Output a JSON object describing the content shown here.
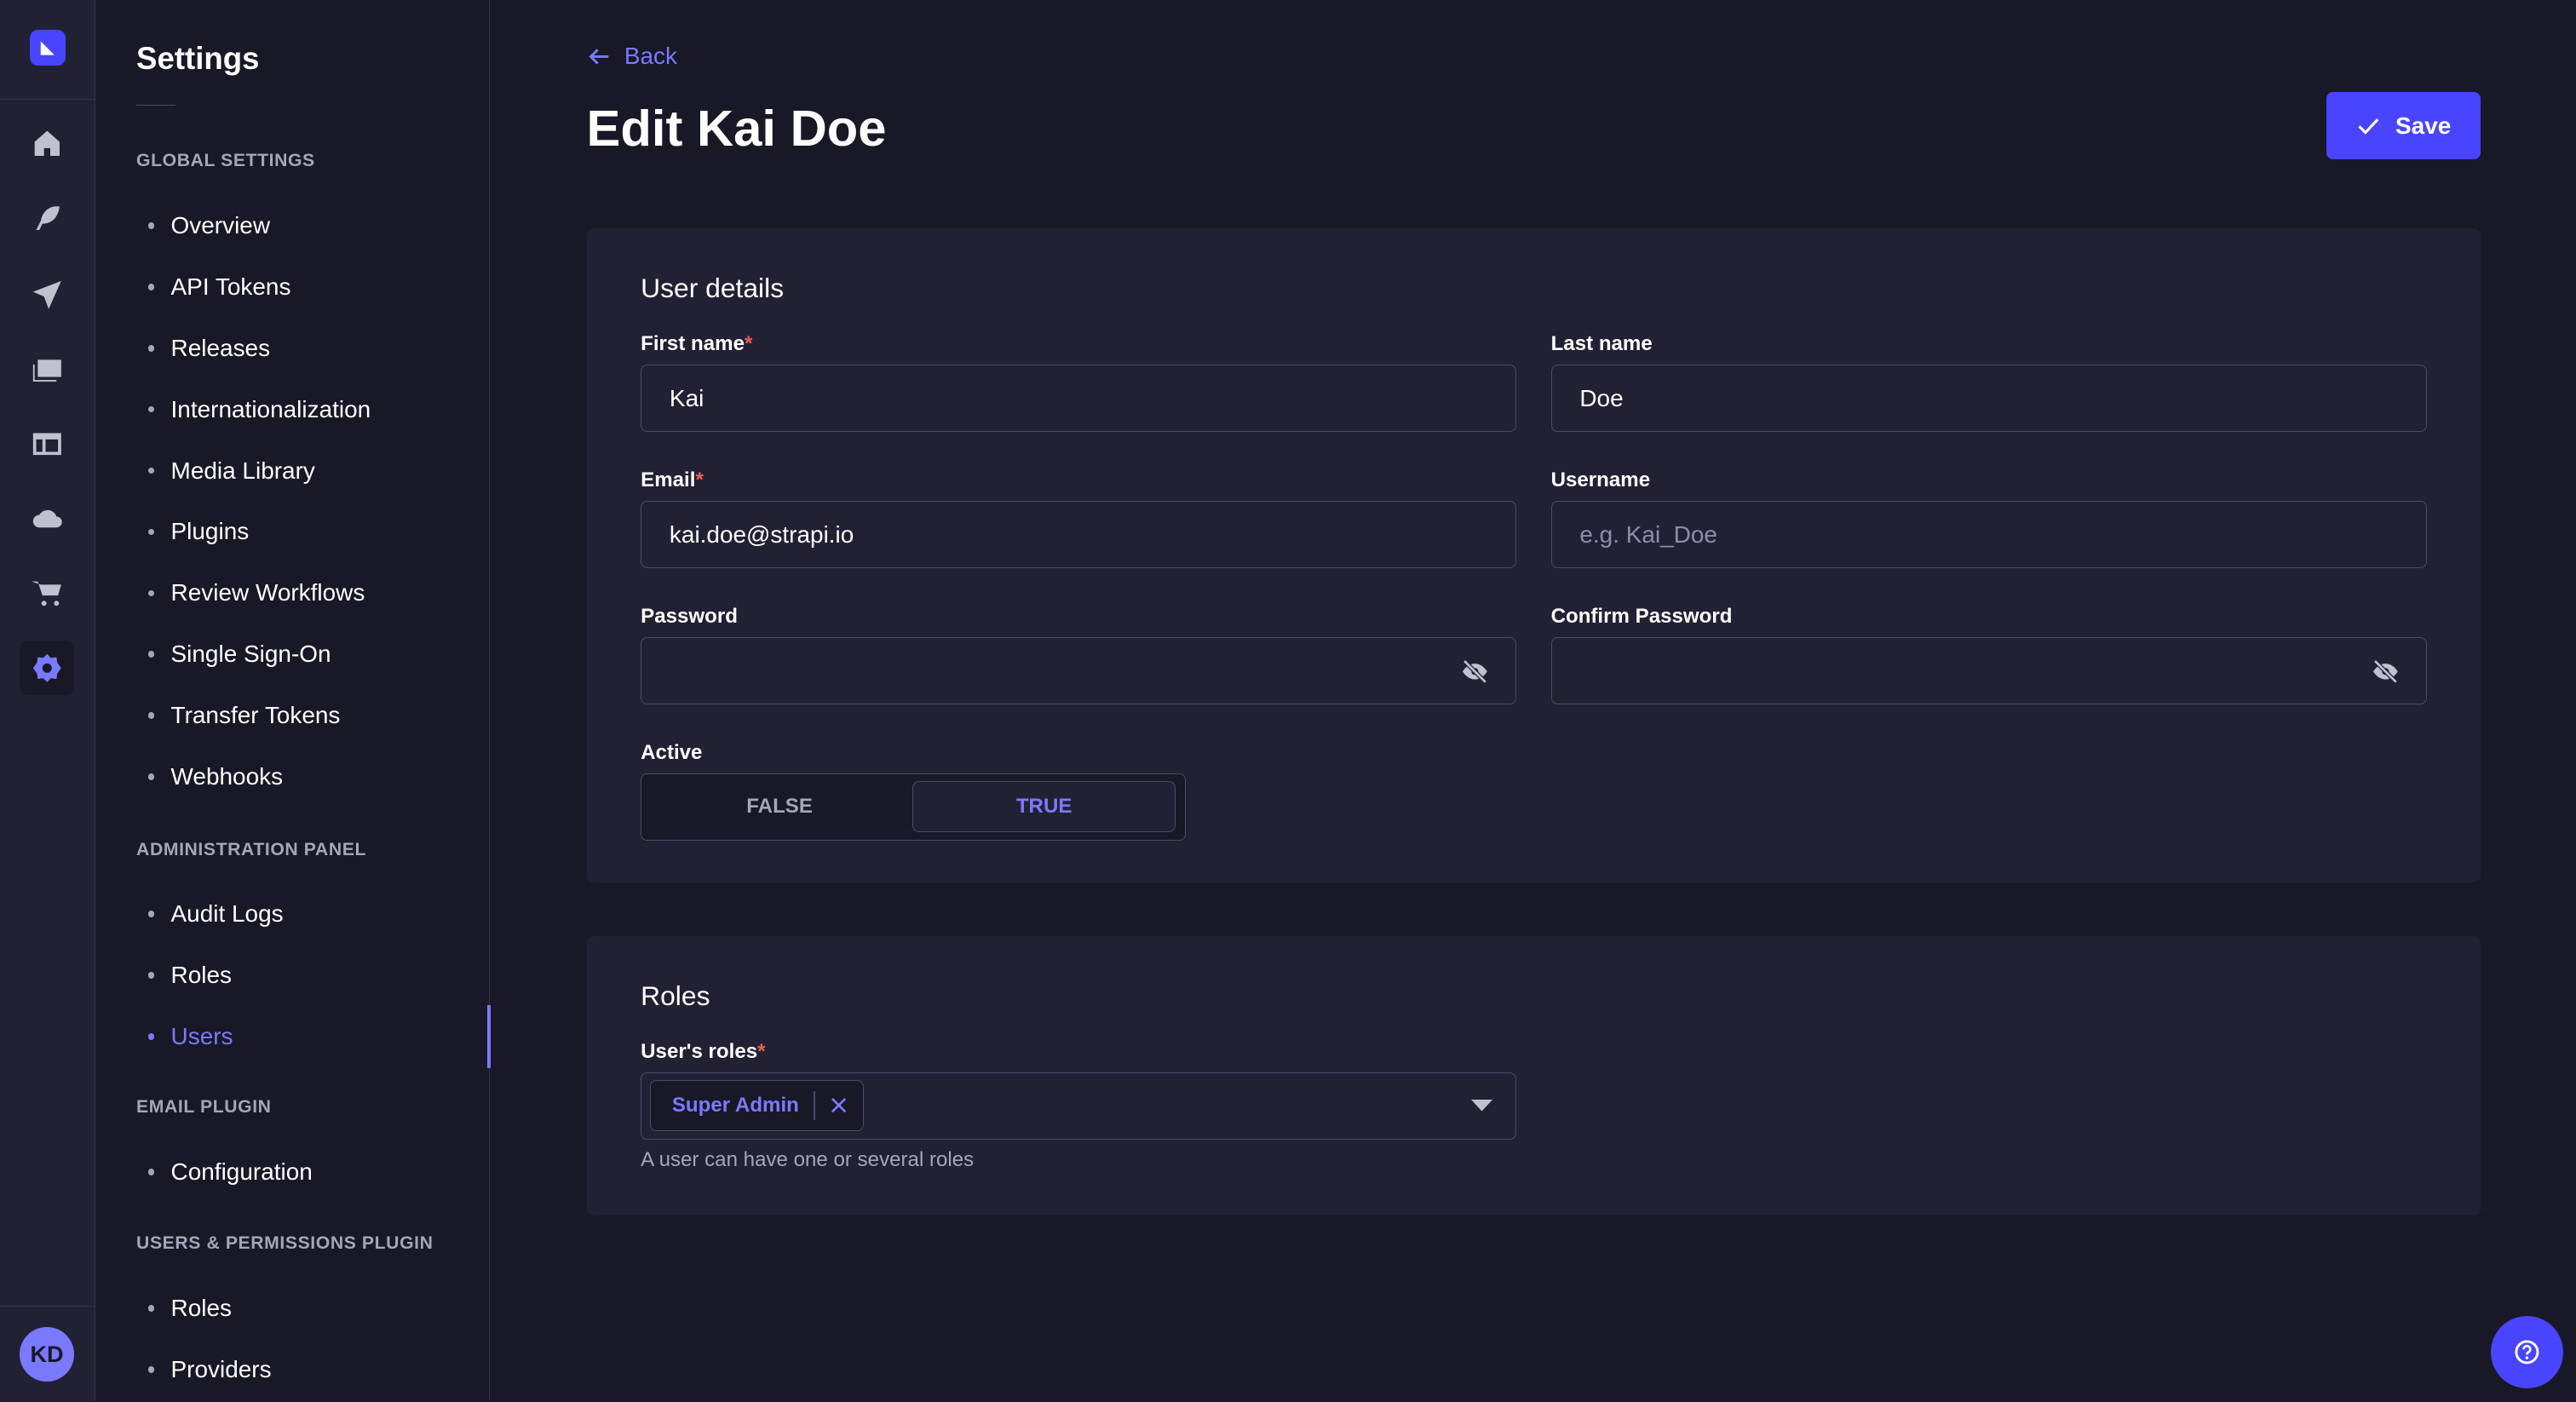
{
  "colors": {
    "primary": "#4945ff",
    "accent": "#7b79ff",
    "background": "#181826",
    "surface": "#212134",
    "required": "#ee5e52"
  },
  "rail": {
    "icons": [
      "home-icon",
      "feather-icon",
      "paper-plane-icon",
      "images-icon",
      "layout-icon",
      "cloud-icon",
      "cart-icon",
      "cog-icon"
    ],
    "active": "cog-icon",
    "avatar": "KD"
  },
  "subnav": {
    "title": "Settings",
    "sections": [
      {
        "label": "GLOBAL SETTINGS",
        "items": [
          "Overview",
          "API Tokens",
          "Releases",
          "Internationalization",
          "Media Library",
          "Plugins",
          "Review Workflows",
          "Single Sign-On",
          "Transfer Tokens",
          "Webhooks"
        ]
      },
      {
        "label": "ADMINISTRATION PANEL",
        "items": [
          "Audit Logs",
          "Roles",
          "Users"
        ]
      },
      {
        "label": "EMAIL PLUGIN",
        "items": [
          "Configuration"
        ]
      },
      {
        "label": "USERS & PERMISSIONS PLUGIN",
        "items": [
          "Roles",
          "Providers"
        ]
      }
    ],
    "active_item": "Users"
  },
  "header": {
    "back": "Back",
    "title": "Edit Kai Doe",
    "save": "Save"
  },
  "details": {
    "title": "User details",
    "first_name": {
      "label": "First name",
      "value": "Kai"
    },
    "last_name": {
      "label": "Last name",
      "value": "Doe"
    },
    "email": {
      "label": "Email",
      "value": "kai.doe@strapi.io"
    },
    "username": {
      "label": "Username",
      "placeholder": "e.g. Kai_Doe"
    },
    "password": {
      "label": "Password"
    },
    "confirm_password": {
      "label": "Confirm Password"
    },
    "active": {
      "label": "Active",
      "false": "FALSE",
      "true": "TRUE",
      "value": true
    }
  },
  "roles": {
    "title": "Roles",
    "label": "User's roles",
    "selected": [
      "Super Admin"
    ],
    "hint": "A user can have one or several roles"
  }
}
